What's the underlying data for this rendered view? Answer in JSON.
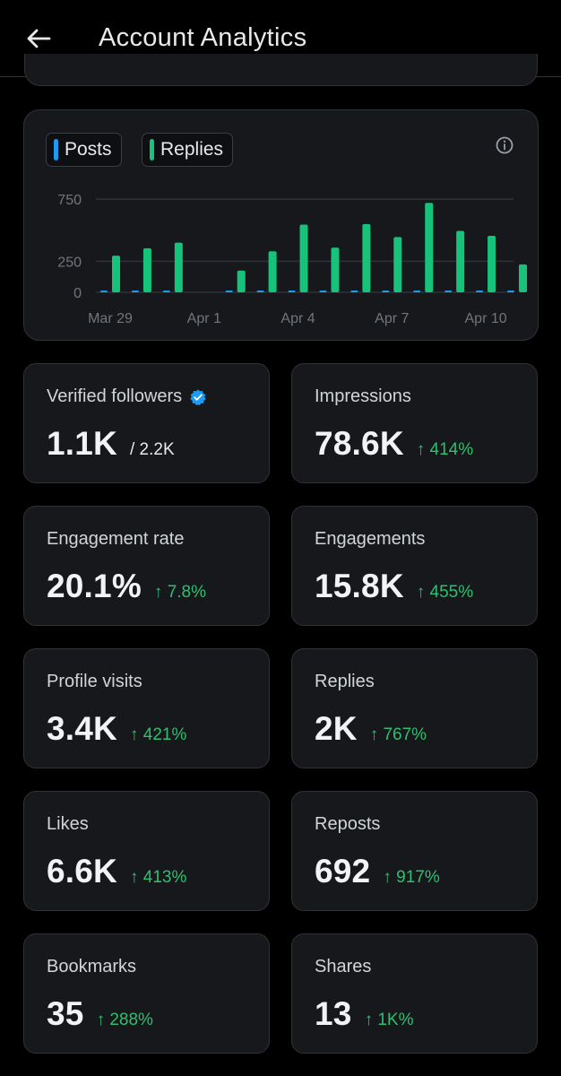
{
  "header": {
    "title": "Account Analytics"
  },
  "chart": {
    "legend": [
      {
        "label": "Posts",
        "color": "#1d9bf0"
      },
      {
        "label": "Replies",
        "color": "#17c37b"
      }
    ]
  },
  "chart_data": {
    "type": "bar",
    "categories": [
      "Mar 29",
      "Mar 30",
      "Mar 31",
      "Apr 1",
      "Apr 2",
      "Apr 3",
      "Apr 4",
      "Apr 5",
      "Apr 6",
      "Apr 7",
      "Apr 8",
      "Apr 9",
      "Apr 10",
      "Apr 11"
    ],
    "x_tick_labels": [
      "Mar 29",
      "Apr 1",
      "Apr 4",
      "Apr 7",
      "Apr 10"
    ],
    "y_ticks": [
      0,
      250,
      750
    ],
    "ylim": [
      0,
      780
    ],
    "series": [
      {
        "name": "Posts",
        "color": "#1d9bf0",
        "values": [
          3,
          4,
          3,
          0,
          3,
          4,
          4,
          3,
          4,
          4,
          4,
          3,
          4,
          3
        ]
      },
      {
        "name": "Replies",
        "color": "#17c37b",
        "values": [
          295,
          355,
          400,
          0,
          175,
          330,
          545,
          360,
          550,
          445,
          720,
          495,
          455,
          225
        ]
      }
    ],
    "grid": true,
    "legend_position": "top-left"
  },
  "stats": [
    {
      "label": "Verified followers",
      "value": "1.1K",
      "sub": "/ 2.2K",
      "verified": true
    },
    {
      "label": "Impressions",
      "value": "78.6K",
      "change": "↑ 414%"
    },
    {
      "label": "Engagement rate",
      "value": "20.1%",
      "change": "↑ 7.8%"
    },
    {
      "label": "Engagements",
      "value": "15.8K",
      "change": "↑ 455%"
    },
    {
      "label": "Profile visits",
      "value": "3.4K",
      "change": "↑ 421%"
    },
    {
      "label": "Replies",
      "value": "2K",
      "change": "↑ 767%"
    },
    {
      "label": "Likes",
      "value": "6.6K",
      "change": "↑ 413%"
    },
    {
      "label": "Reposts",
      "value": "692",
      "change": "↑ 917%"
    },
    {
      "label": "Bookmarks",
      "value": "35",
      "change": "↑ 288%"
    },
    {
      "label": "Shares",
      "value": "13",
      "change": "↑ 1K%"
    }
  ],
  "icons": {
    "back": "arrow-left-icon",
    "info": "info-icon",
    "verified": "verified-badge-icon"
  },
  "colors": {
    "accent_positive": "#2fbf71",
    "verified": "#1d9bf0",
    "background": "#000000",
    "card": "#16181c"
  }
}
